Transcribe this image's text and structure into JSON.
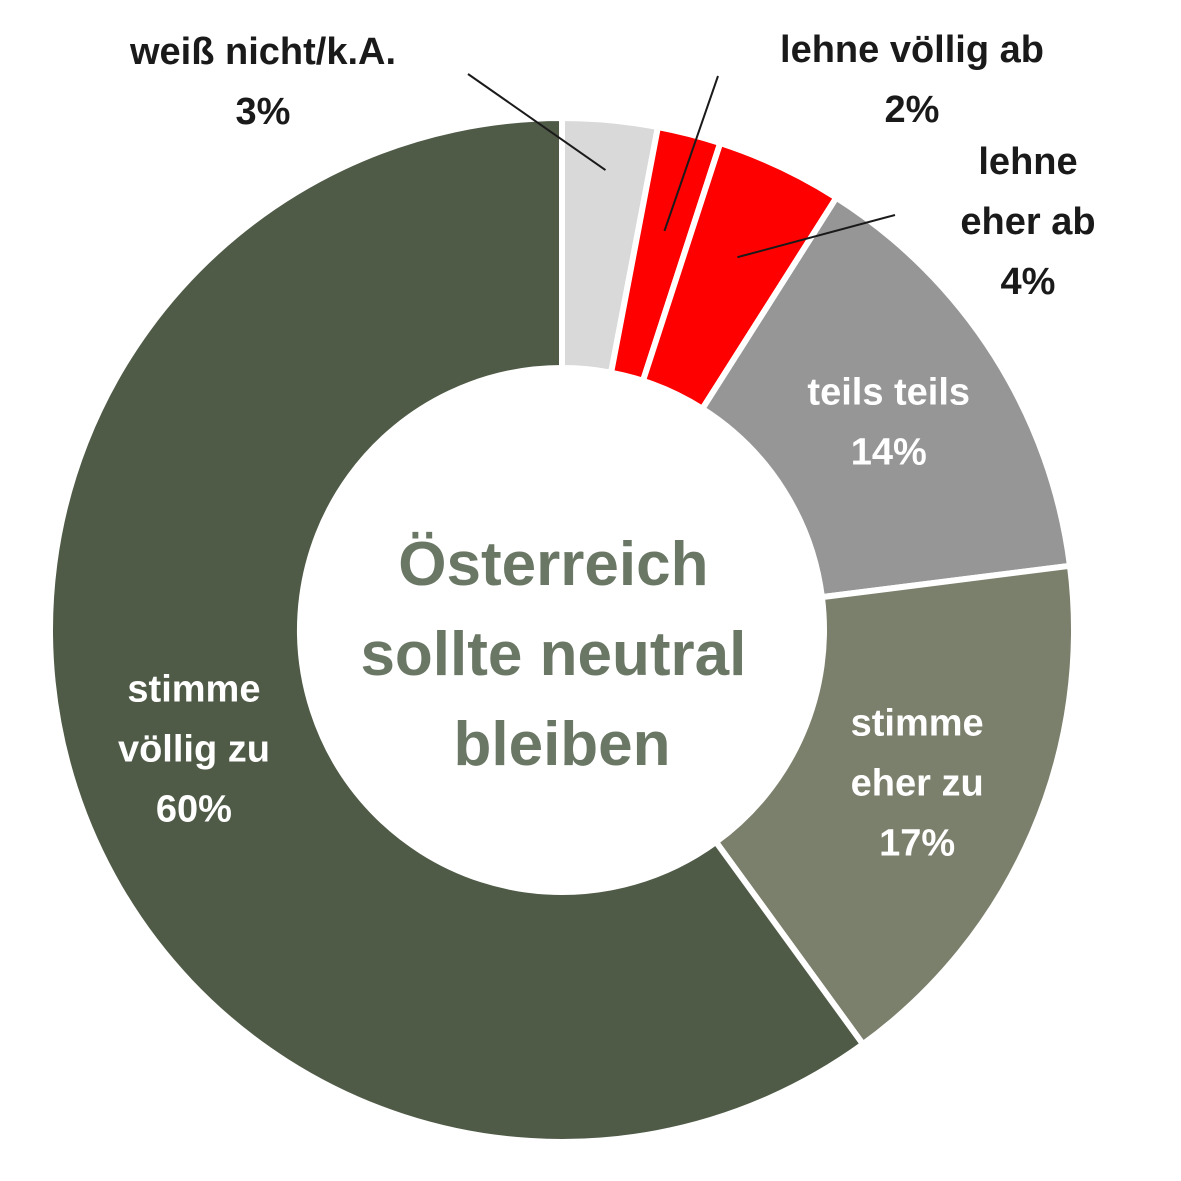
{
  "chart_data": {
    "type": "pie",
    "center_title": [
      "Österreich",
      "sollte neutral",
      "bleiben"
    ],
    "center_title_color": "#6b7765",
    "slices": [
      {
        "name": "weiß nicht/k.A.",
        "value": 3,
        "value_label": "3%",
        "color": "#d9d9d9",
        "label_lines": [
          "weiß nicht/k.A.",
          "3%"
        ],
        "label_color": "#1a1a1a",
        "label_position": "outside"
      },
      {
        "name": "lehne völlig ab",
        "value": 2,
        "value_label": "2%",
        "color": "#ff0000",
        "label_lines": [
          "lehne völlig ab",
          "2%"
        ],
        "label_color": "#1a1a1a",
        "label_position": "outside"
      },
      {
        "name": "lehne eher ab",
        "value": 4,
        "value_label": "4%",
        "color": "#ff0000",
        "label_lines": [
          "lehne",
          "eher ab",
          "4%"
        ],
        "label_color": "#1a1a1a",
        "label_position": "outside"
      },
      {
        "name": "teils teils",
        "value": 14,
        "value_label": "14%",
        "color": "#969696",
        "label_lines": [
          "teils teils",
          "14%"
        ],
        "label_color": "#ffffff",
        "label_position": "inside"
      },
      {
        "name": "stimme eher zu",
        "value": 17,
        "value_label": "17%",
        "color": "#7b806c",
        "label_lines": [
          "stimme",
          "eher zu",
          "17%"
        ],
        "label_color": "#ffffff",
        "label_position": "inside"
      },
      {
        "name": "stimme völlig zu",
        "value": 60,
        "value_label": "60%",
        "color": "#4f5b47",
        "label_lines": [
          "stimme",
          "völlig zu",
          "60%"
        ],
        "label_color": "#ffffff",
        "label_position": "inside"
      }
    ],
    "legend": "none",
    "start": "top, clockwise"
  }
}
